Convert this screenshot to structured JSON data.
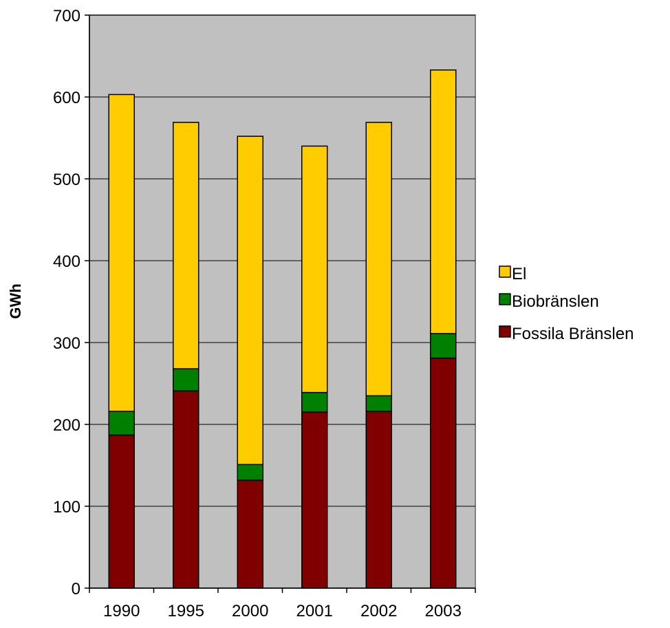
{
  "chart_data": {
    "type": "bar",
    "stacked": true,
    "categories": [
      "1990",
      "1995",
      "2000",
      "2001",
      "2002",
      "2003"
    ],
    "series": [
      {
        "name": "Fossila Bränslen",
        "color": "#800000",
        "values": [
          187,
          241,
          132,
          215,
          216,
          281
        ]
      },
      {
        "name": "Biobränslen",
        "color": "#008000",
        "values": [
          29,
          27,
          19,
          24,
          19,
          30
        ]
      },
      {
        "name": "El",
        "color": "#FFCC00",
        "values": [
          387,
          301,
          401,
          301,
          334,
          322
        ]
      }
    ],
    "ylabel": "GWh",
    "ylim": [
      0,
      700
    ],
    "yticks": [
      0,
      100,
      200,
      300,
      400,
      500,
      600,
      700
    ],
    "grid": true,
    "plot_background": "#C0C0C0",
    "legend_position": "right",
    "legend_order": [
      "El",
      "Biobränslen",
      "Fossila Bränslen"
    ]
  }
}
